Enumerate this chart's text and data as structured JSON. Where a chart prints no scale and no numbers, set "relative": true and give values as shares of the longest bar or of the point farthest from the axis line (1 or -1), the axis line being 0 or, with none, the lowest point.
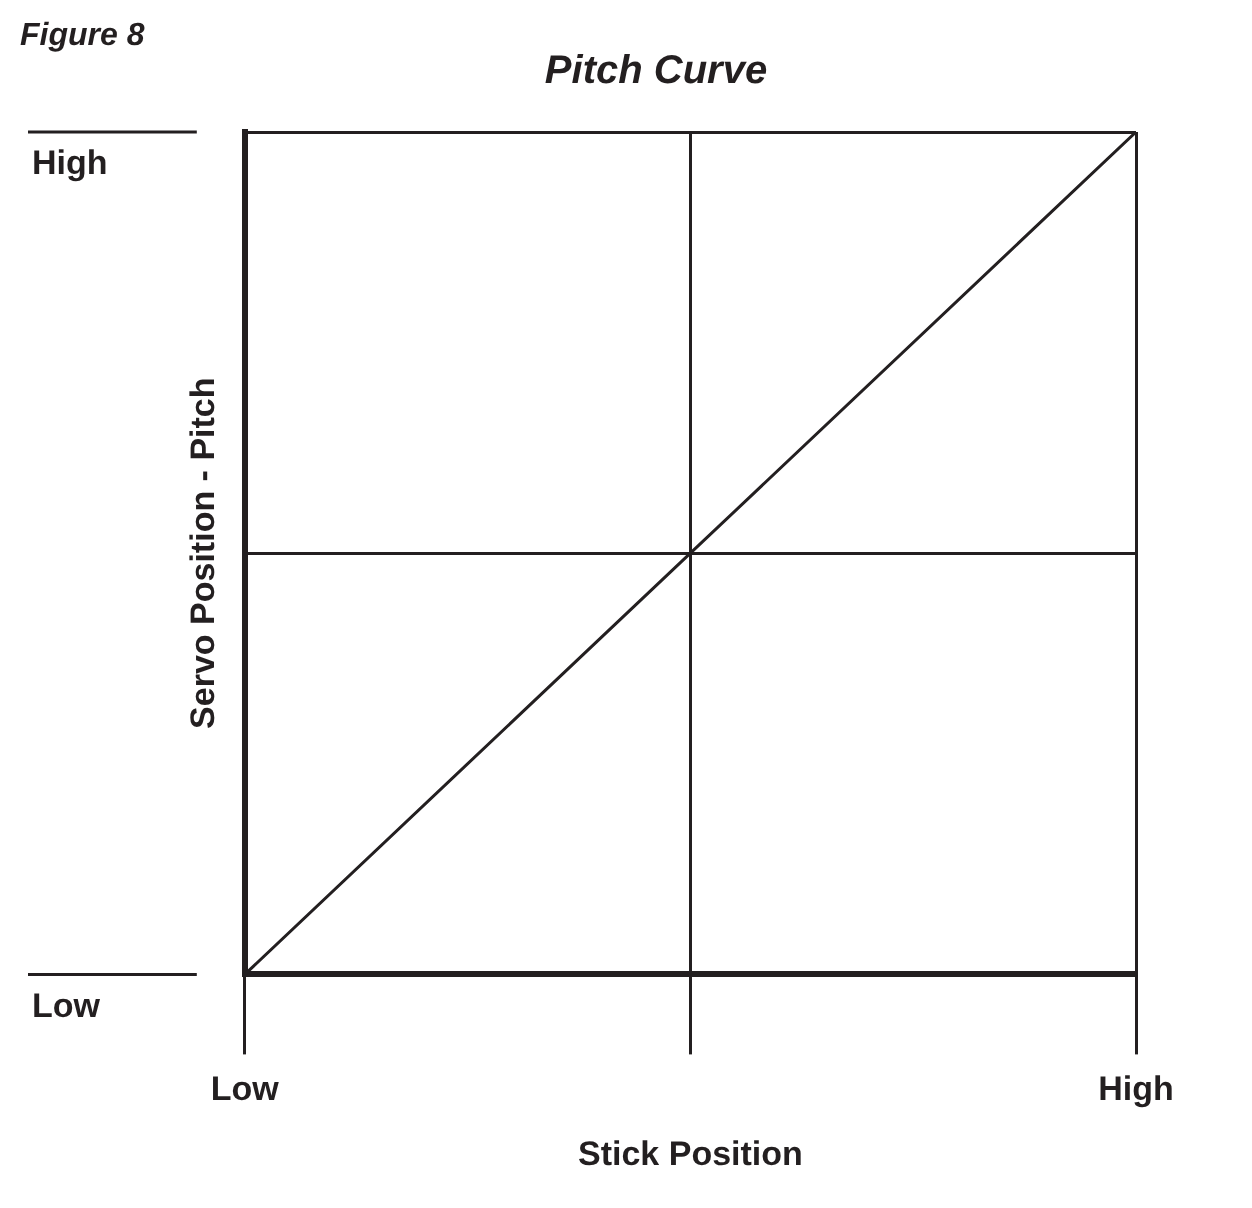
{
  "chart_data": {
    "type": "line",
    "title": "Pitch Curve",
    "xlabel": "Stick Position",
    "ylabel": "Servo Position - Pitch",
    "annotations": [
      "Figure 8",
      "High",
      "Low"
    ],
    "categories": [
      "Low",
      null,
      "High"
    ],
    "series": [
      {
        "color": "#231f20",
        "values": [
          0,
          0.5,
          1
        ]
      }
    ],
    "relative": true,
    "grid": true,
    "legend": false,
    "marker": "none",
    "line_style": "solid"
  }
}
